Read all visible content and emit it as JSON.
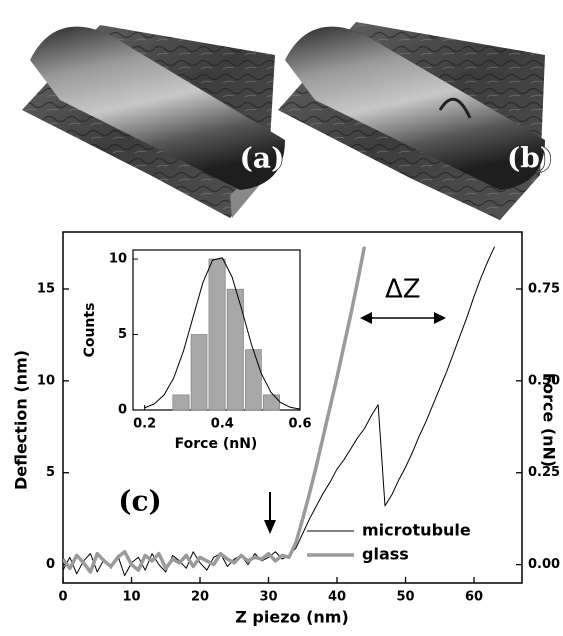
{
  "images": [
    {
      "label": "(a)"
    },
    {
      "label": "(b)"
    }
  ],
  "chart_data": {
    "type": "line",
    "xlabel": "Z piezo (nm)",
    "ylabel": "Deflection (nm)",
    "y2label": "Force (nN)",
    "xlim": [
      0,
      67
    ],
    "xticks": [
      0,
      10,
      20,
      30,
      40,
      50,
      60
    ],
    "ylim": [
      -1,
      18.1
    ],
    "yticks": [
      0,
      5,
      10,
      15
    ],
    "y2lim": [
      -0.05,
      0.905
    ],
    "y2ticks": [
      {
        "value": 0,
        "label": "0.00"
      },
      {
        "value": 0.25,
        "label": "0.25"
      },
      {
        "value": 0.5,
        "label": "0.50"
      },
      {
        "value": 0.75,
        "label": "0.75"
      }
    ],
    "legend": "lower right",
    "annotations": [
      "ΔZ",
      "(c)"
    ],
    "series": [
      {
        "name": "microtubule",
        "color": "#000000",
        "width": 1,
        "x": [
          0,
          1,
          2,
          3,
          4,
          5,
          6,
          7,
          8,
          9,
          10,
          11,
          12,
          13,
          14,
          15,
          16,
          17,
          18,
          19,
          20,
          21,
          22,
          23,
          24,
          25,
          26,
          27,
          28,
          29,
          30,
          31,
          32,
          33,
          34,
          35,
          36,
          37,
          38,
          39,
          40,
          41,
          42,
          43,
          44,
          45,
          46,
          47,
          48,
          49,
          50,
          51,
          52,
          53,
          54,
          55,
          56,
          57,
          58,
          59,
          60,
          61,
          62,
          63
        ],
        "values": [
          -0.3,
          0.4,
          -0.5,
          0.2,
          0.6,
          -0.4,
          0.3,
          -0.2,
          0.5,
          -0.6,
          0.1,
          0.4,
          -0.3,
          0.6,
          0.0,
          -0.4,
          0.5,
          0.2,
          -0.2,
          0.7,
          0.1,
          -0.3,
          0.4,
          0.6,
          -0.1,
          0.3,
          0.5,
          0.0,
          0.6,
          0.2,
          0.4,
          0.7,
          0.3,
          0.5,
          0.9,
          1.7,
          2.5,
          3.2,
          3.9,
          4.5,
          5.2,
          5.7,
          6.3,
          6.9,
          7.4,
          8.1,
          8.7,
          3.2,
          3.8,
          4.6,
          5.3,
          6.1,
          7.0,
          7.8,
          8.7,
          9.6,
          10.5,
          11.5,
          12.5,
          13.5,
          14.6,
          15.6,
          16.5,
          17.3
        ]
      },
      {
        "name": "glass",
        "color": "#9a9a9a",
        "width": 3.5,
        "x": [
          0,
          1,
          2,
          3,
          4,
          5,
          6,
          7,
          8,
          9,
          10,
          11,
          12,
          13,
          14,
          15,
          16,
          17,
          18,
          19,
          20,
          21,
          22,
          23,
          24,
          25,
          26,
          27,
          28,
          29,
          30,
          31,
          32,
          33,
          34,
          35,
          36,
          37,
          38,
          39,
          40,
          41,
          42,
          43,
          44
        ],
        "values": [
          0.3,
          -0.2,
          0.5,
          0.1,
          -0.4,
          0.6,
          0.2,
          -0.1,
          0.4,
          0.7,
          0.0,
          -0.3,
          0.5,
          0.2,
          0.6,
          -0.2,
          0.3,
          0.1,
          0.5,
          -0.1,
          0.4,
          0.2,
          0.0,
          0.6,
          0.3,
          0.1,
          0.5,
          0.2,
          0.4,
          0.3,
          0.6,
          0.2,
          0.5,
          0.4,
          1.2,
          2.5,
          3.9,
          5.4,
          7.0,
          8.6,
          10.2,
          11.9,
          13.6,
          15.4,
          17.3
        ]
      }
    ],
    "inset": {
      "type": "histogram",
      "xlabel": "Force (nN)",
      "ylabel": "Counts",
      "xlim": [
        0.17,
        0.6
      ],
      "xticks": [
        0.2,
        0.4,
        0.6
      ],
      "ylim": [
        0,
        10.6
      ],
      "yticks": [
        0,
        5,
        10
      ],
      "color": "#a8a8a8",
      "bins": [
        0.27,
        0.317,
        0.363,
        0.41,
        0.457,
        0.503,
        0.55
      ],
      "counts": [
        1,
        5,
        10,
        8,
        4,
        1
      ],
      "fit": {
        "x": [
          0.2,
          0.225,
          0.25,
          0.275,
          0.3,
          0.325,
          0.35,
          0.375,
          0.4,
          0.425,
          0.45,
          0.475,
          0.5,
          0.525,
          0.55,
          0.575,
          0.6
        ],
        "values": [
          0.14,
          0.41,
          1.0,
          2.13,
          3.91,
          6.19,
          8.44,
          9.93,
          10.08,
          8.82,
          6.66,
          4.34,
          2.44,
          1.18,
          0.49,
          0.18,
          0.06
        ]
      }
    }
  }
}
